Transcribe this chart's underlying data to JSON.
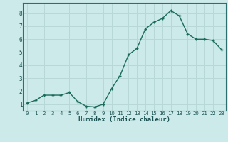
{
  "x": [
    0,
    1,
    2,
    3,
    4,
    5,
    6,
    7,
    8,
    9,
    10,
    11,
    12,
    13,
    14,
    15,
    16,
    17,
    18,
    19,
    20,
    21,
    22,
    23
  ],
  "y": [
    1.1,
    1.3,
    1.7,
    1.7,
    1.7,
    1.9,
    1.2,
    0.85,
    0.8,
    1.0,
    2.2,
    3.2,
    4.8,
    5.3,
    6.8,
    7.3,
    7.6,
    8.2,
    7.8,
    6.4,
    6.0,
    6.0,
    5.9,
    5.2
  ],
  "xlabel": "Humidex (Indice chaleur)",
  "ylim": [
    0.5,
    8.8
  ],
  "xlim": [
    -0.5,
    23.5
  ],
  "bg_color": "#cdeaea",
  "line_color": "#1a6b5a",
  "marker_color": "#1a6b5a",
  "grid_color": "#b8d8d8",
  "axis_color": "#2a7070",
  "tick_label_color": "#1a5050",
  "xlabel_color": "#1a5050",
  "yticks": [
    1,
    2,
    3,
    4,
    5,
    6,
    7,
    8
  ],
  "xticks": [
    0,
    1,
    2,
    3,
    4,
    5,
    6,
    7,
    8,
    9,
    10,
    11,
    12,
    13,
    14,
    15,
    16,
    17,
    18,
    19,
    20,
    21,
    22,
    23
  ]
}
